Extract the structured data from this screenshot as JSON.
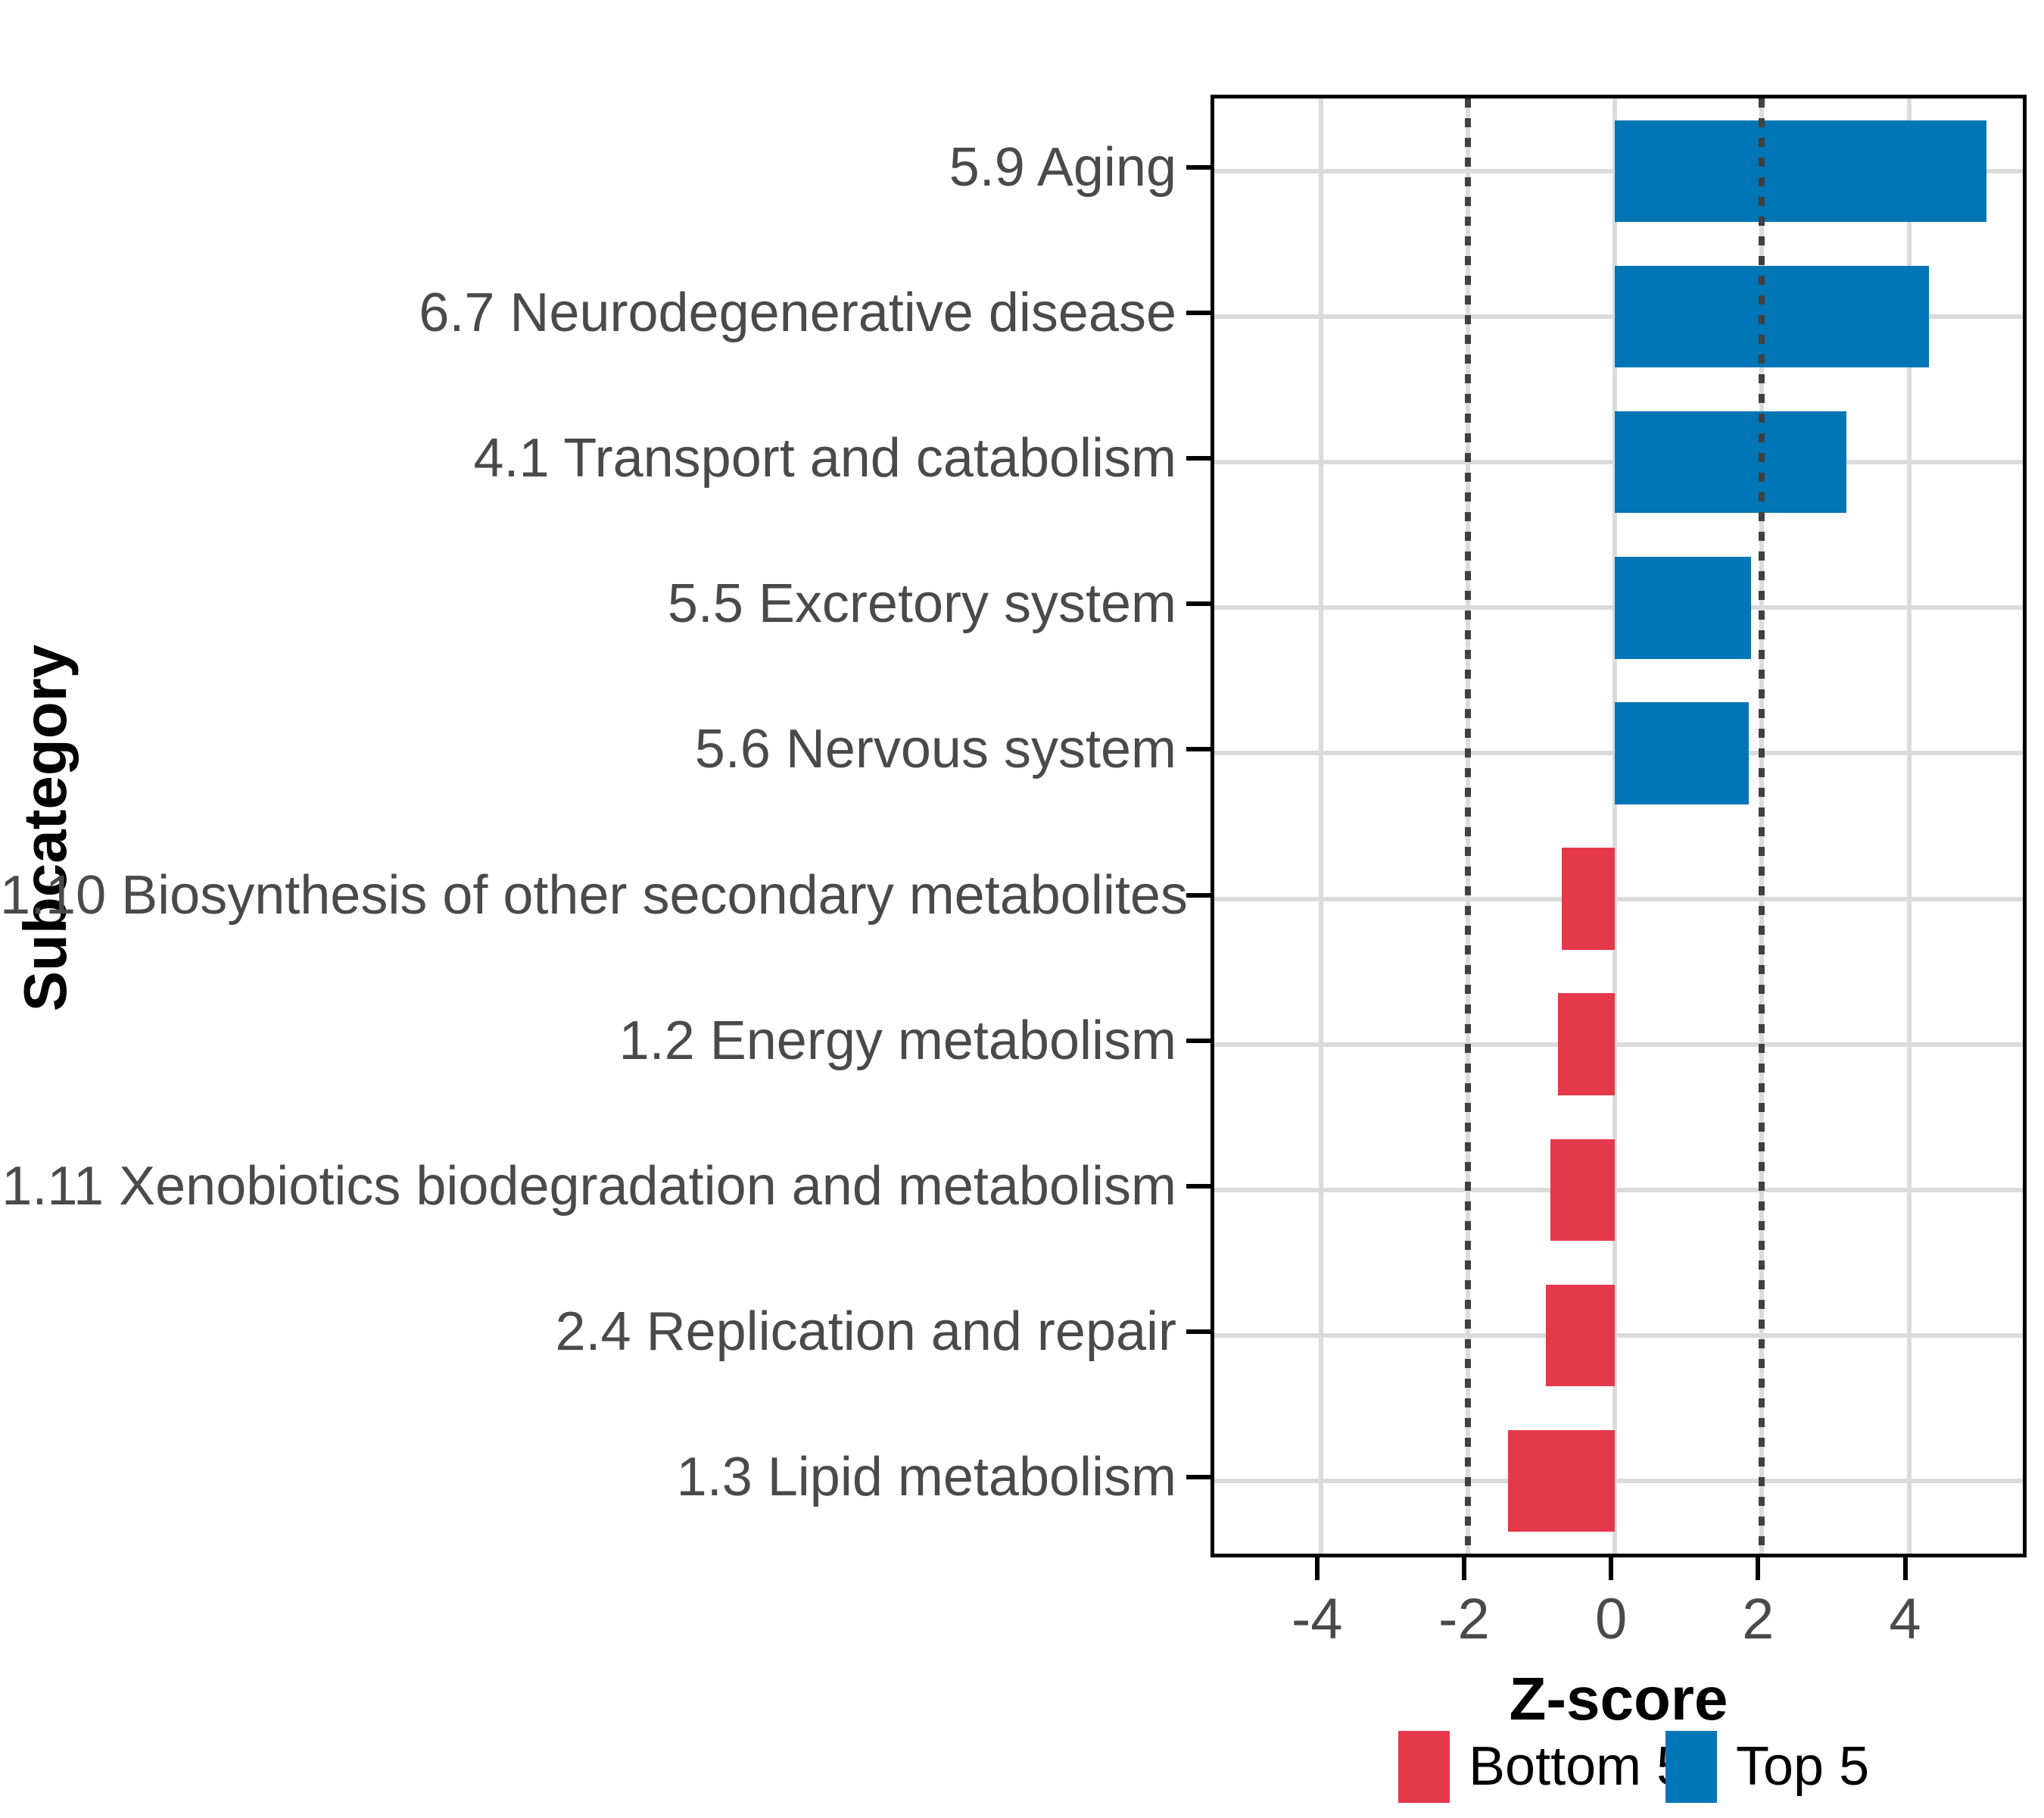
{
  "titles": {
    "y_axis": "Subcategory",
    "x_axis": "Z-score"
  },
  "colors": {
    "bottom5": "#E5384A",
    "top5": "#0076B6",
    "gridline": "#dbdbdb",
    "refline": "#404040",
    "axis_text": "#4a4a4a",
    "panel_border": "#000000",
    "background": "#ffffff"
  },
  "legend": {
    "position": "bottom",
    "items": [
      {
        "label": "Bottom 5",
        "color": "#E5384A"
      },
      {
        "label": "Top 5",
        "color": "#0076B6"
      }
    ]
  },
  "chart_data": {
    "type": "bar",
    "orientation": "horizontal",
    "title": "",
    "xlabel": "Z-score",
    "ylabel": "Subcategory",
    "xlim": [
      -5.45,
      5.55
    ],
    "x_ticks": [
      -4,
      -2,
      0,
      2,
      4
    ],
    "x_tick_labels": [
      "-4",
      "-2",
      "0",
      "2",
      "4"
    ],
    "reference_lines": [
      -2,
      2
    ],
    "grid": "major-only",
    "bar_relative_height": 0.7,
    "legend_position": "bottom",
    "categories": [
      {
        "label": "5.9 Aging",
        "value": 5.06,
        "group": "Top 5"
      },
      {
        "label": "6.7 Neurodegenerative disease",
        "value": 4.27,
        "group": "Top 5"
      },
      {
        "label": "4.1 Transport and catabolism",
        "value": 3.15,
        "group": "Top 5"
      },
      {
        "label": "5.5 Excretory system",
        "value": 1.85,
        "group": "Top 5"
      },
      {
        "label": "5.6 Nervous system",
        "value": 1.82,
        "group": "Top 5"
      },
      {
        "label": "1.10 Biosynthesis of other secondary metabolites",
        "value": -0.72,
        "group": "Bottom 5"
      },
      {
        "label": "1.2 Energy metabolism",
        "value": -0.77,
        "group": "Bottom 5"
      },
      {
        "label": "1.11 Xenobiotics biodegradation and metabolism",
        "value": -0.88,
        "group": "Bottom 5"
      },
      {
        "label": "2.4 Replication and repair",
        "value": -0.94,
        "group": "Bottom 5"
      },
      {
        "label": "1.3 Lipid metabolism",
        "value": -1.45,
        "group": "Bottom 5"
      }
    ]
  }
}
